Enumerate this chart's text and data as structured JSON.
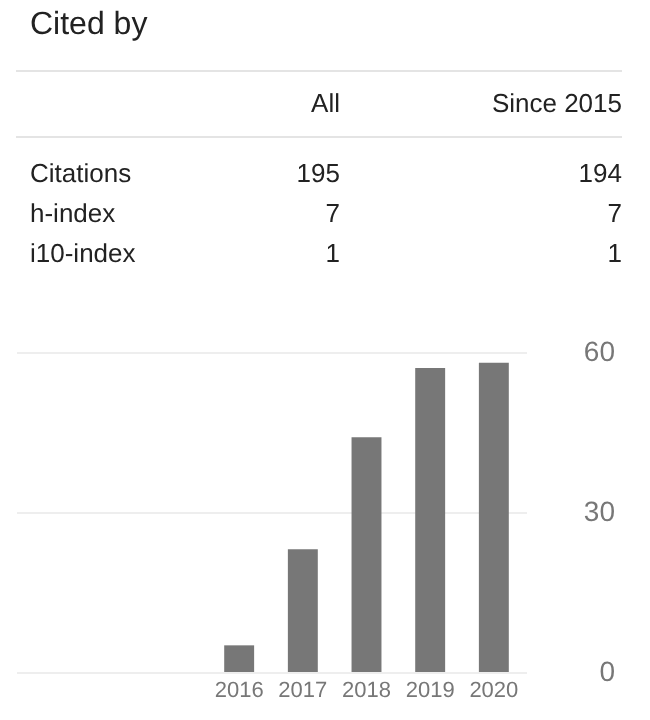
{
  "chart_data": [
    {
      "type": "other",
      "title": "Cited by",
      "annotations": [
        "All",
        "Since 2015",
        "Citations",
        "195",
        "194",
        "h-index",
        "7",
        "7",
        "i10-index",
        "1",
        "1"
      ]
    },
    {
      "type": "bar",
      "categories": [
        null,
        null,
        null,
        "2016",
        "2017",
        "2018",
        "2019",
        "2020"
      ],
      "values": [
        null,
        null,
        null,
        5,
        23,
        44,
        57,
        58
      ],
      "color": "#777777",
      "ylim": [
        0,
        60
      ],
      "yticks": [
        0,
        30,
        60
      ],
      "grid": "y"
    }
  ]
}
